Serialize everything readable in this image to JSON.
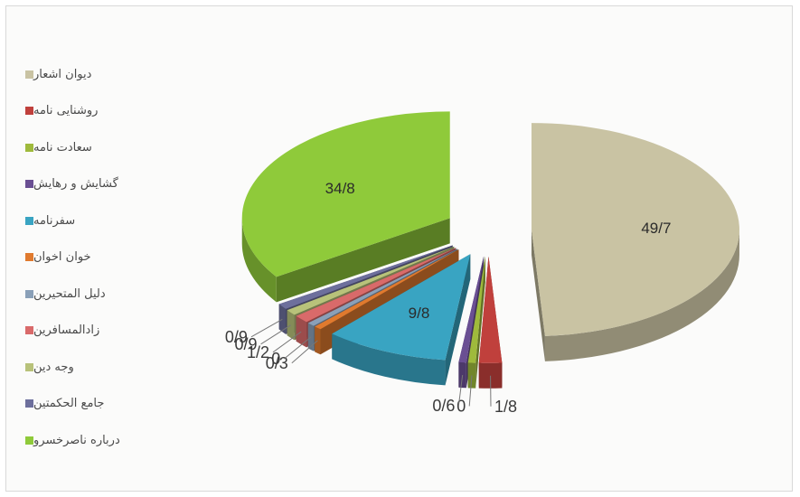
{
  "chart_data": {
    "type": "pie",
    "categories": [
      "دیوان اشعار",
      "روشنایی نامه",
      "سعادت نامه",
      "گشایش و رهایش",
      "سفرنامه",
      "خوان اخوان",
      "دلیل المتحیرین",
      "زادالمسافرین",
      "وجه دین",
      "جامع الحکمتین",
      "درباره ناصرخسرو"
    ],
    "values": [
      49.7,
      1.8,
      0,
      0.6,
      9.8,
      0.3,
      0,
      1.2,
      0.9,
      0.9,
      34.8
    ],
    "value_labels": [
      "49/7",
      "1/8",
      "0",
      "0/6",
      "9/8",
      "0/3",
      "0",
      "1/2",
      "0/9",
      "0/9",
      "34/8"
    ],
    "colors": [
      "#c9c3a3",
      "#c0403c",
      "#9fba3c",
      "#6a4f93",
      "#39a4c2",
      "#e07a2e",
      "#8aa0b8",
      "#d96a6a",
      "#b8c27a",
      "#6d6f9c",
      "#8fca3a"
    ],
    "exploded": true,
    "style": "3d",
    "legend_position": "left"
  }
}
